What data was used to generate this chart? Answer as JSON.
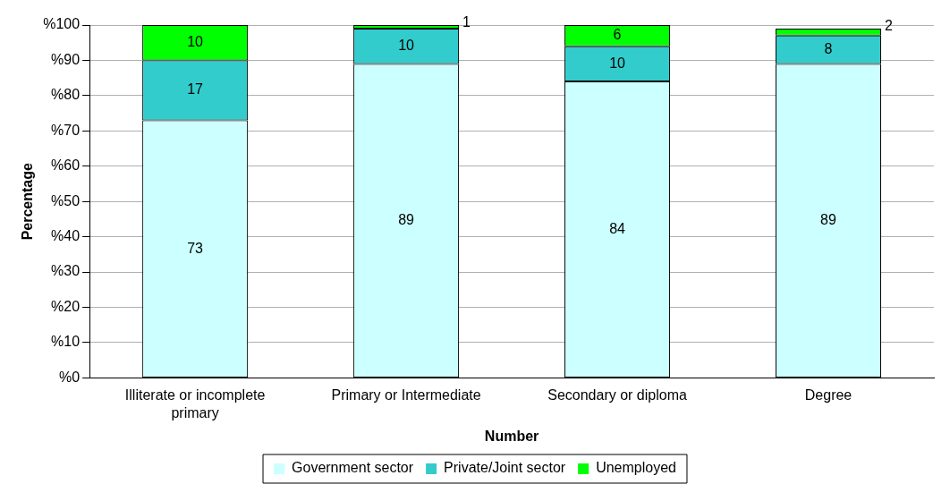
{
  "chart_data": {
    "type": "bar",
    "stacked": true,
    "xlabel": "Number",
    "ylabel": "Percentage",
    "categories": [
      "Illiterate or incomplete primary",
      "Primary or Intermediate",
      "Secondary or diploma",
      "Degree"
    ],
    "series": [
      {
        "name": "Government sector",
        "color": "#ccffff",
        "values": [
          73,
          89,
          84,
          89
        ]
      },
      {
        "name": "Private/Joint sector",
        "color": "#33cccc",
        "values": [
          17,
          10,
          10,
          8
        ]
      },
      {
        "name": "Unemployed",
        "color": "#00ff00",
        "values": [
          10,
          1,
          6,
          2
        ]
      }
    ],
    "ylim": [
      0,
      100
    ],
    "yticks": [
      {
        "value": 0,
        "label": "%0"
      },
      {
        "value": 10,
        "label": "%10"
      },
      {
        "value": 20,
        "label": "%20"
      },
      {
        "value": 30,
        "label": "%30"
      },
      {
        "value": 40,
        "label": "%40"
      },
      {
        "value": 50,
        "label": "%50"
      },
      {
        "value": 60,
        "label": "%60"
      },
      {
        "value": 70,
        "label": "%70"
      },
      {
        "value": 80,
        "label": "%80"
      },
      {
        "value": 90,
        "label": "%90"
      },
      {
        "value": 100,
        "label": "%100"
      }
    ],
    "grid": "y",
    "legend": "bottom",
    "data_labels": true
  }
}
